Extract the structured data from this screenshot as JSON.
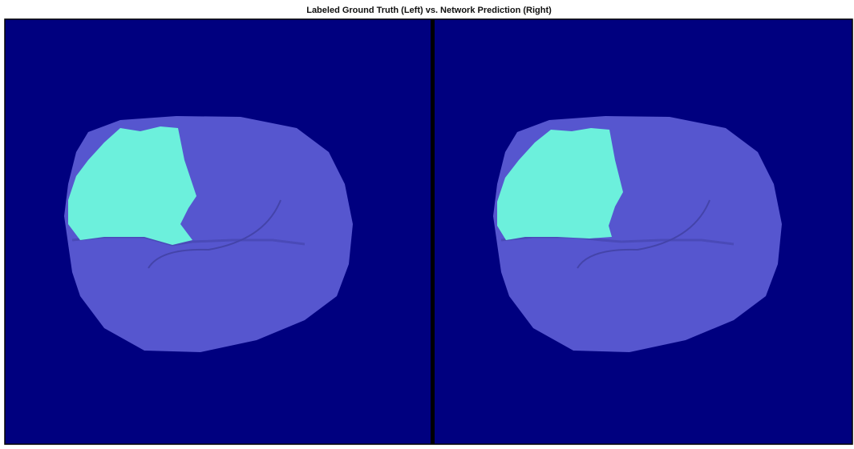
{
  "title": "Labeled Ground Truth (Left) vs. Network Prediction (Right)"
}
